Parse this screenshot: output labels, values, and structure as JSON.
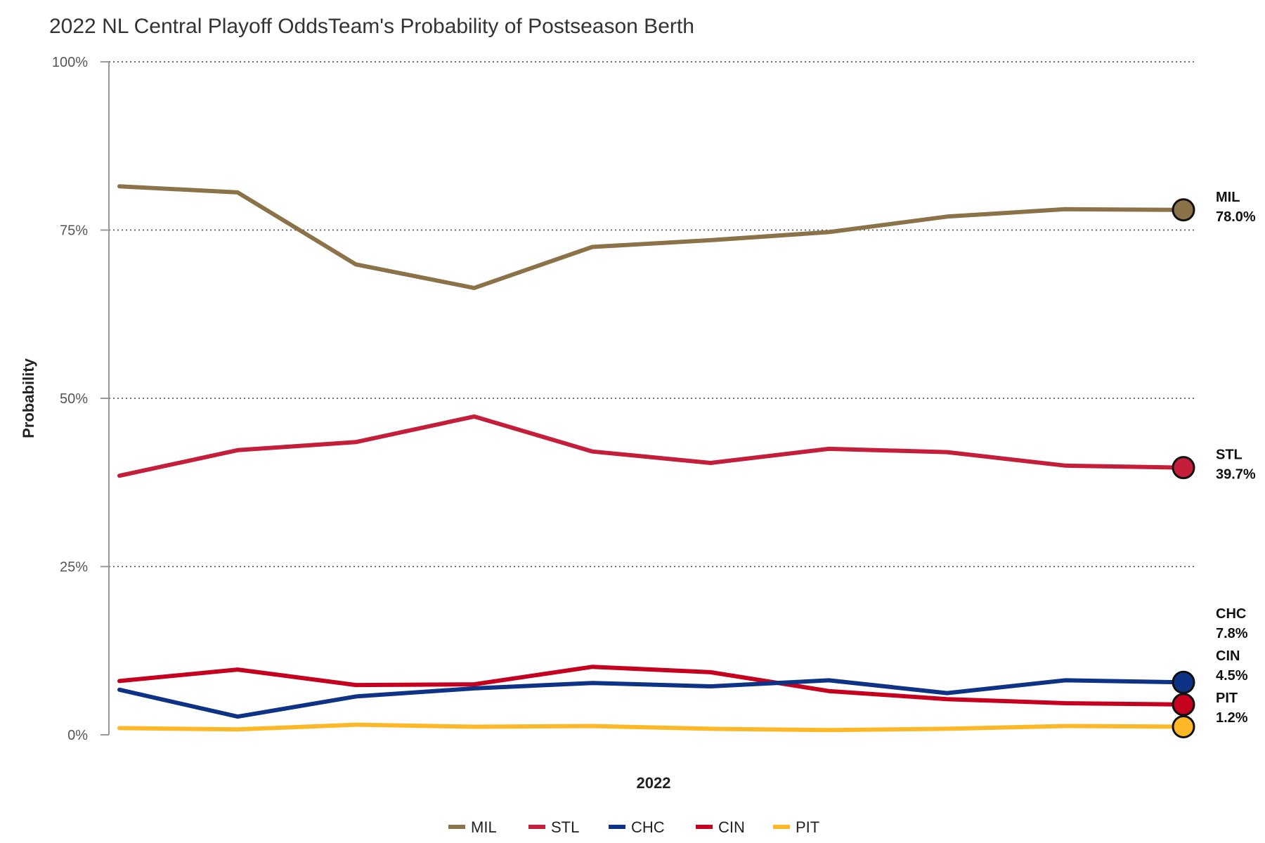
{
  "chart_data": {
    "type": "line",
    "title": "2022 NL Central Playoff OddsTeam's Probability of Postseason Berth",
    "xlabel": "2022",
    "ylabel": "Probability",
    "ylim": [
      0,
      100
    ],
    "y_ticks": [
      {
        "value": 0,
        "label": "0%"
      },
      {
        "value": 25,
        "label": "25%"
      },
      {
        "value": 50,
        "label": "50%"
      },
      {
        "value": 75,
        "label": "75%"
      },
      {
        "value": 100,
        "label": "100%"
      }
    ],
    "grid": "horizontal-dotted",
    "legend_position": "bottom",
    "x": [
      1,
      2,
      3,
      4,
      5,
      6,
      7,
      8,
      9,
      10
    ],
    "series": [
      {
        "name": "MIL",
        "color": "#8B7248",
        "values": [
          81.5,
          80.6,
          69.9,
          66.4,
          72.5,
          73.5,
          74.7,
          77.0,
          78.1,
          78.0
        ],
        "end_label": "MIL",
        "end_value_label": "78.0%"
      },
      {
        "name": "STL",
        "color": "#C41E3A",
        "values": [
          38.5,
          42.3,
          43.5,
          47.3,
          42.1,
          40.4,
          42.5,
          42.0,
          40.0,
          39.7
        ],
        "end_label": "STL",
        "end_value_label": "39.7%"
      },
      {
        "name": "CHC",
        "color": "#0E3386",
        "values": [
          6.7,
          2.7,
          5.7,
          6.9,
          7.7,
          7.2,
          8.1,
          6.2,
          8.1,
          7.8
        ],
        "end_label": "CHC",
        "end_value_label": "7.8%"
      },
      {
        "name": "CIN",
        "color": "#C6011F",
        "values": [
          8.0,
          9.7,
          7.4,
          7.5,
          10.1,
          9.3,
          6.5,
          5.3,
          4.7,
          4.5
        ],
        "end_label": "CIN",
        "end_value_label": "4.5%"
      },
      {
        "name": "PIT",
        "color": "#FDB827",
        "values": [
          1.0,
          0.8,
          1.5,
          1.2,
          1.3,
          0.9,
          0.7,
          0.9,
          1.3,
          1.2
        ],
        "end_label": "PIT",
        "end_value_label": "1.2%"
      }
    ]
  }
}
